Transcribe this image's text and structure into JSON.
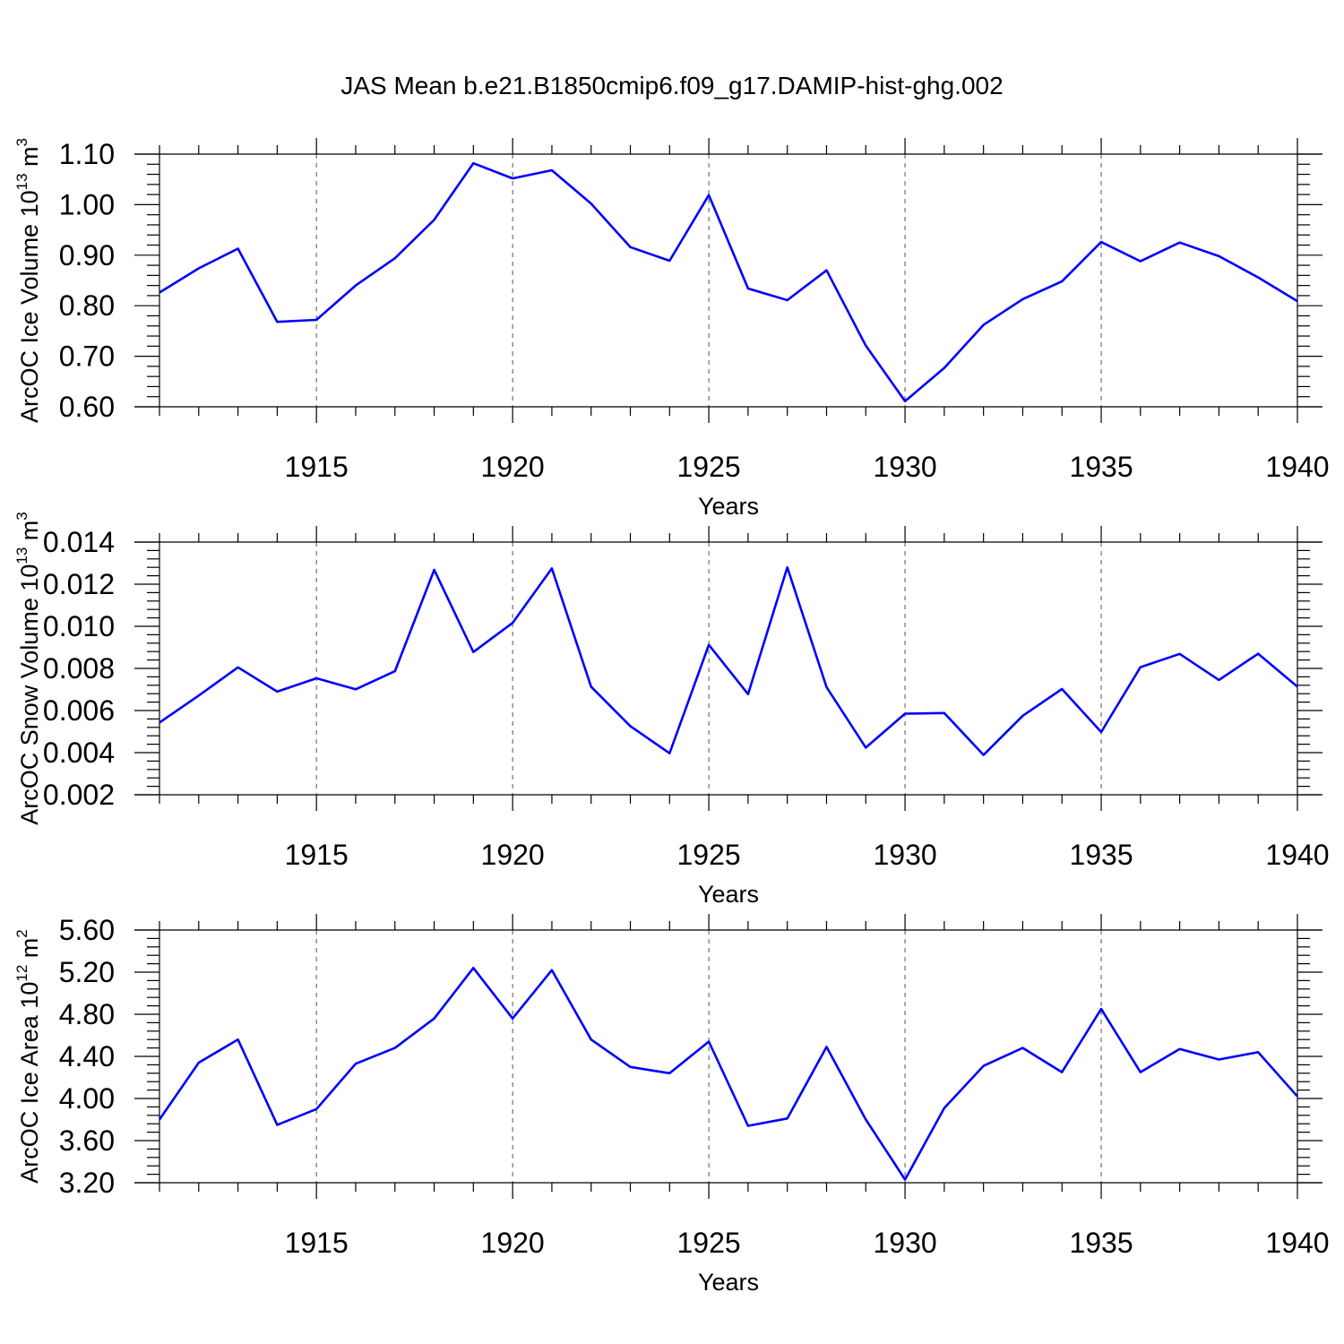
{
  "title": "JAS Mean b.e21.B1850cmip6.f09_g17.DAMIP-hist-ghg.002",
  "colors": {
    "line": "#0000ff",
    "axis": "#000000",
    "grid": "#555555",
    "background": "#ffffff"
  },
  "chart_data": [
    {
      "type": "line",
      "xlabel": "Years",
      "ylabel": {
        "main": "ArcOC Ice Volume 10",
        "exp1": "13",
        "unit": " m",
        "exp2": "3"
      },
      "xlim": [
        1911,
        1940
      ],
      "ylim": [
        0.6,
        1.1
      ],
      "xticks": [
        "1915",
        "1920",
        "1925",
        "1930",
        "1935",
        "1940"
      ],
      "yticks": [
        "0.60",
        "0.70",
        "0.80",
        "0.90",
        "1.00",
        "1.10"
      ],
      "grid": "vertical-dashed",
      "x": [
        1911,
        1912,
        1913,
        1914,
        1915,
        1916,
        1917,
        1918,
        1919,
        1920,
        1921,
        1922,
        1923,
        1924,
        1925,
        1926,
        1927,
        1928,
        1929,
        1930,
        1931,
        1932,
        1933,
        1934,
        1935,
        1936,
        1937,
        1938,
        1939,
        1940
      ],
      "values": [
        0.826,
        0.874,
        0.913,
        0.768,
        0.772,
        0.84,
        0.894,
        0.97,
        1.082,
        1.052,
        1.068,
        1.002,
        0.916,
        0.889,
        1.019,
        0.834,
        0.811,
        0.87,
        0.721,
        0.611,
        0.677,
        0.762,
        0.813,
        0.848,
        0.926,
        0.888,
        0.925,
        0.898,
        0.856,
        0.809
      ]
    },
    {
      "type": "line",
      "xlabel": "Years",
      "ylabel": {
        "main": "ArcOC Snow Volume 10",
        "exp1": "13",
        "unit": " m",
        "exp2": "3"
      },
      "xlim": [
        1911,
        1940
      ],
      "ylim": [
        0.002,
        0.014
      ],
      "xticks": [
        "1915",
        "1920",
        "1925",
        "1930",
        "1935",
        "1940"
      ],
      "yticks": [
        "0.002",
        "0.004",
        "0.006",
        "0.008",
        "0.010",
        "0.012",
        "0.014"
      ],
      "grid": "vertical-dashed",
      "x": [
        1911,
        1912,
        1913,
        1914,
        1915,
        1916,
        1917,
        1918,
        1919,
        1920,
        1921,
        1922,
        1923,
        1924,
        1925,
        1926,
        1927,
        1928,
        1929,
        1930,
        1931,
        1932,
        1933,
        1934,
        1935,
        1936,
        1937,
        1938,
        1939,
        1940
      ],
      "values": [
        0.00543,
        0.00671,
        0.00805,
        0.0069,
        0.00753,
        0.00701,
        0.00787,
        0.01268,
        0.00878,
        0.01016,
        0.01275,
        0.00713,
        0.00526,
        0.00397,
        0.00912,
        0.00678,
        0.0128,
        0.00711,
        0.00424,
        0.00585,
        0.00588,
        0.00389,
        0.00575,
        0.00702,
        0.00498,
        0.00806,
        0.00869,
        0.00745,
        0.0087,
        0.00713
      ]
    },
    {
      "type": "line",
      "xlabel": "Years",
      "ylabel": {
        "main": "ArcOC Ice Area 10",
        "exp1": "12",
        "unit": " m",
        "exp2": "2"
      },
      "xlim": [
        1911,
        1940
      ],
      "ylim": [
        3.2,
        5.6
      ],
      "xticks": [
        "1915",
        "1920",
        "1925",
        "1930",
        "1935",
        "1940"
      ],
      "yticks": [
        "3.20",
        "3.60",
        "4.00",
        "4.40",
        "4.80",
        "5.20",
        "5.60"
      ],
      "grid": "vertical-dashed",
      "x": [
        1911,
        1912,
        1913,
        1914,
        1915,
        1916,
        1917,
        1918,
        1919,
        1920,
        1921,
        1922,
        1923,
        1924,
        1925,
        1926,
        1927,
        1928,
        1929,
        1930,
        1931,
        1932,
        1933,
        1934,
        1935,
        1936,
        1937,
        1938,
        1939,
        1940
      ],
      "values": [
        3.8,
        4.34,
        4.56,
        3.75,
        3.9,
        4.33,
        4.48,
        4.76,
        5.24,
        4.76,
        5.22,
        4.56,
        4.3,
        4.24,
        4.54,
        3.74,
        3.81,
        4.49,
        3.8,
        3.23,
        3.91,
        4.31,
        4.48,
        4.25,
        4.85,
        4.25,
        4.47,
        4.37,
        4.44,
        4.02
      ]
    }
  ]
}
